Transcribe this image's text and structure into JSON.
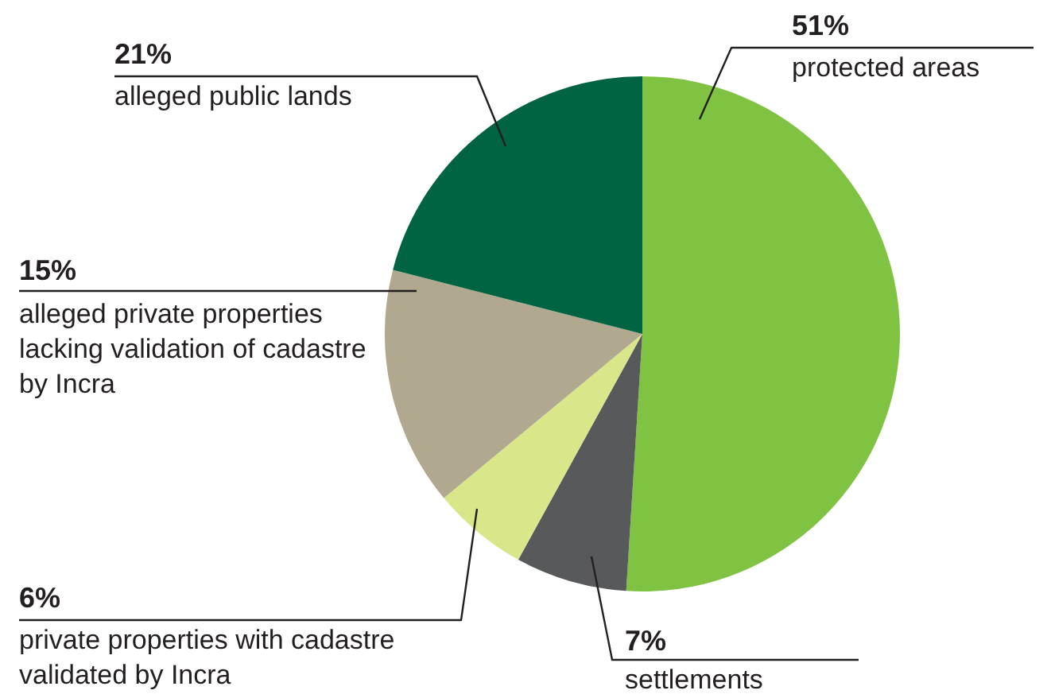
{
  "chart_data": {
    "type": "pie",
    "categories": [
      "protected areas",
      "settlements",
      "private properties with cadastre validated by Incra",
      "alleged private properties lacking validation of cadastre by Incra",
      "alleged public lands"
    ],
    "values": [
      51,
      7,
      6,
      15,
      21
    ],
    "colors": [
      "#80c343",
      "#58595b",
      "#d9e68a",
      "#b0a98f",
      "#006341"
    ],
    "value_labels": [
      "51%",
      "7%",
      "6%",
      "15%",
      "21%"
    ],
    "legend": false
  }
}
